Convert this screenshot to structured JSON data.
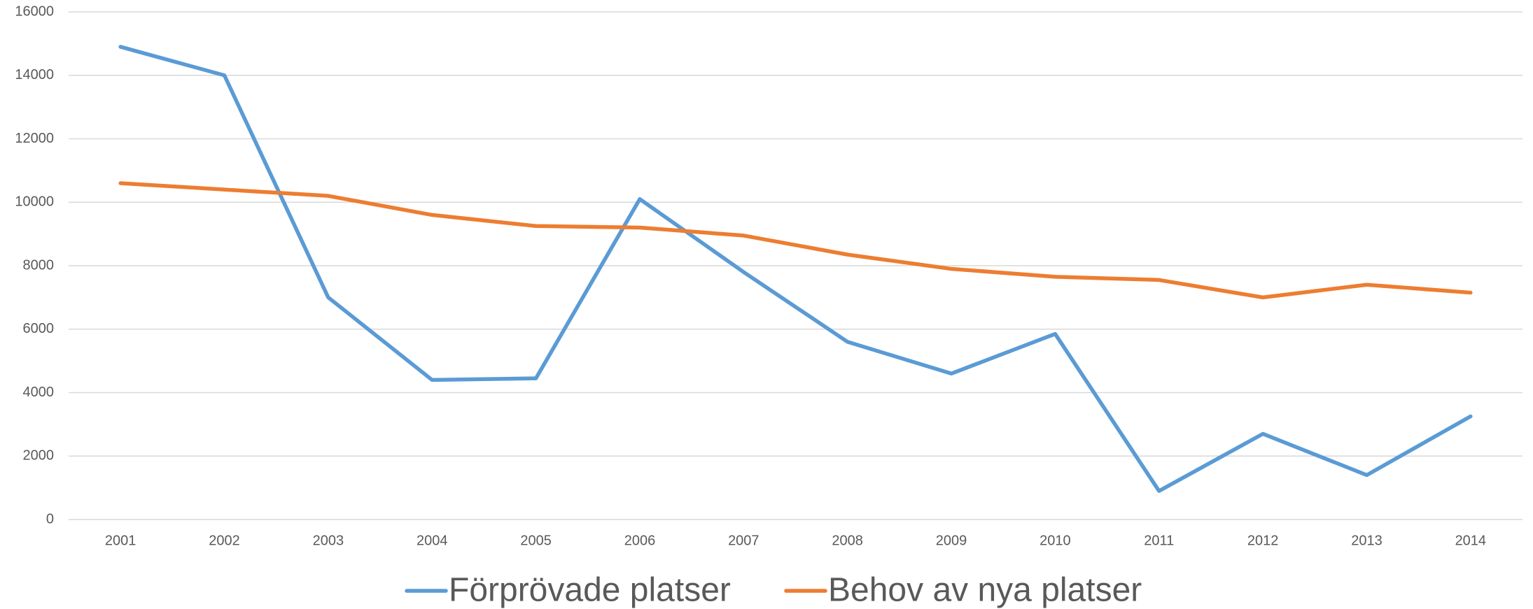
{
  "chart_data": {
    "type": "line",
    "categories": [
      "2001",
      "2002",
      "2003",
      "2004",
      "2005",
      "2006",
      "2007",
      "2008",
      "2009",
      "2010",
      "2011",
      "2012",
      "2013",
      "2014"
    ],
    "series": [
      {
        "name": "Förprövade platser",
        "color": "#5b9bd5",
        "values": [
          14900,
          14000,
          7000,
          4400,
          4450,
          10100,
          7800,
          5600,
          4600,
          5850,
          900,
          2700,
          1400,
          3250
        ]
      },
      {
        "name": "Behov av nya platser",
        "color": "#ed7d31",
        "values": [
          10600,
          10400,
          10200,
          9600,
          9250,
          9200,
          8950,
          8350,
          7900,
          7650,
          7550,
          7000,
          7400,
          7150
        ]
      }
    ],
    "ylim": [
      0,
      16000
    ],
    "yticks": [
      0,
      2000,
      4000,
      6000,
      8000,
      10000,
      12000,
      14000,
      16000
    ],
    "grid": true,
    "legend": "bottom"
  }
}
